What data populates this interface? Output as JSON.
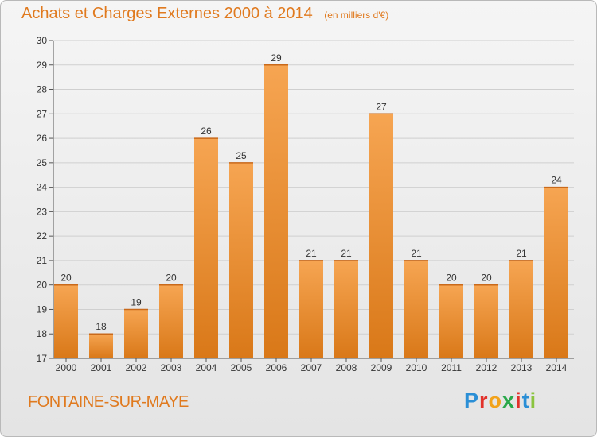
{
  "header": {
    "title": "Achats et Charges Externes 2000 à 2014",
    "unit": "(en milliers d'€)"
  },
  "footer": {
    "commune": "FONTAINE-SUR-MAYE",
    "logo": {
      "letters": [
        "P",
        "r",
        "o",
        "x",
        "i",
        "t",
        "i"
      ],
      "colors": [
        "#2b8fd6",
        "#e2322b",
        "#f2a31b",
        "#2aa84a",
        "#e2322b",
        "#2b8fd6",
        "#8bc43f"
      ]
    }
  },
  "chart_data": {
    "type": "bar",
    "title": "Achats et Charges Externes 2000 à 2014",
    "subtitle": "(en milliers d'€)",
    "categories": [
      "2000",
      "2001",
      "2002",
      "2003",
      "2004",
      "2005",
      "2006",
      "2007",
      "2008",
      "2009",
      "2010",
      "2011",
      "2012",
      "2013",
      "2014"
    ],
    "values": [
      20,
      18,
      19,
      20,
      26,
      25,
      29,
      21,
      21,
      27,
      21,
      20,
      20,
      21,
      24
    ],
    "data_labels": [
      "20",
      "18",
      "19",
      "20",
      "26",
      "25",
      "29",
      "21",
      "21",
      "27",
      "21",
      "20",
      "20",
      "21",
      "24"
    ],
    "ylim": [
      17,
      30
    ],
    "yticks": [
      "17",
      "18",
      "19",
      "20",
      "21",
      "22",
      "23",
      "24",
      "25",
      "26",
      "27",
      "28",
      "29",
      "30"
    ],
    "grid": true,
    "colors": {
      "bar_light": "#f6a552",
      "bar_dark": "#d97818",
      "grid": "#cfcfcf",
      "axis": "#555555",
      "text": "#333333"
    }
  }
}
